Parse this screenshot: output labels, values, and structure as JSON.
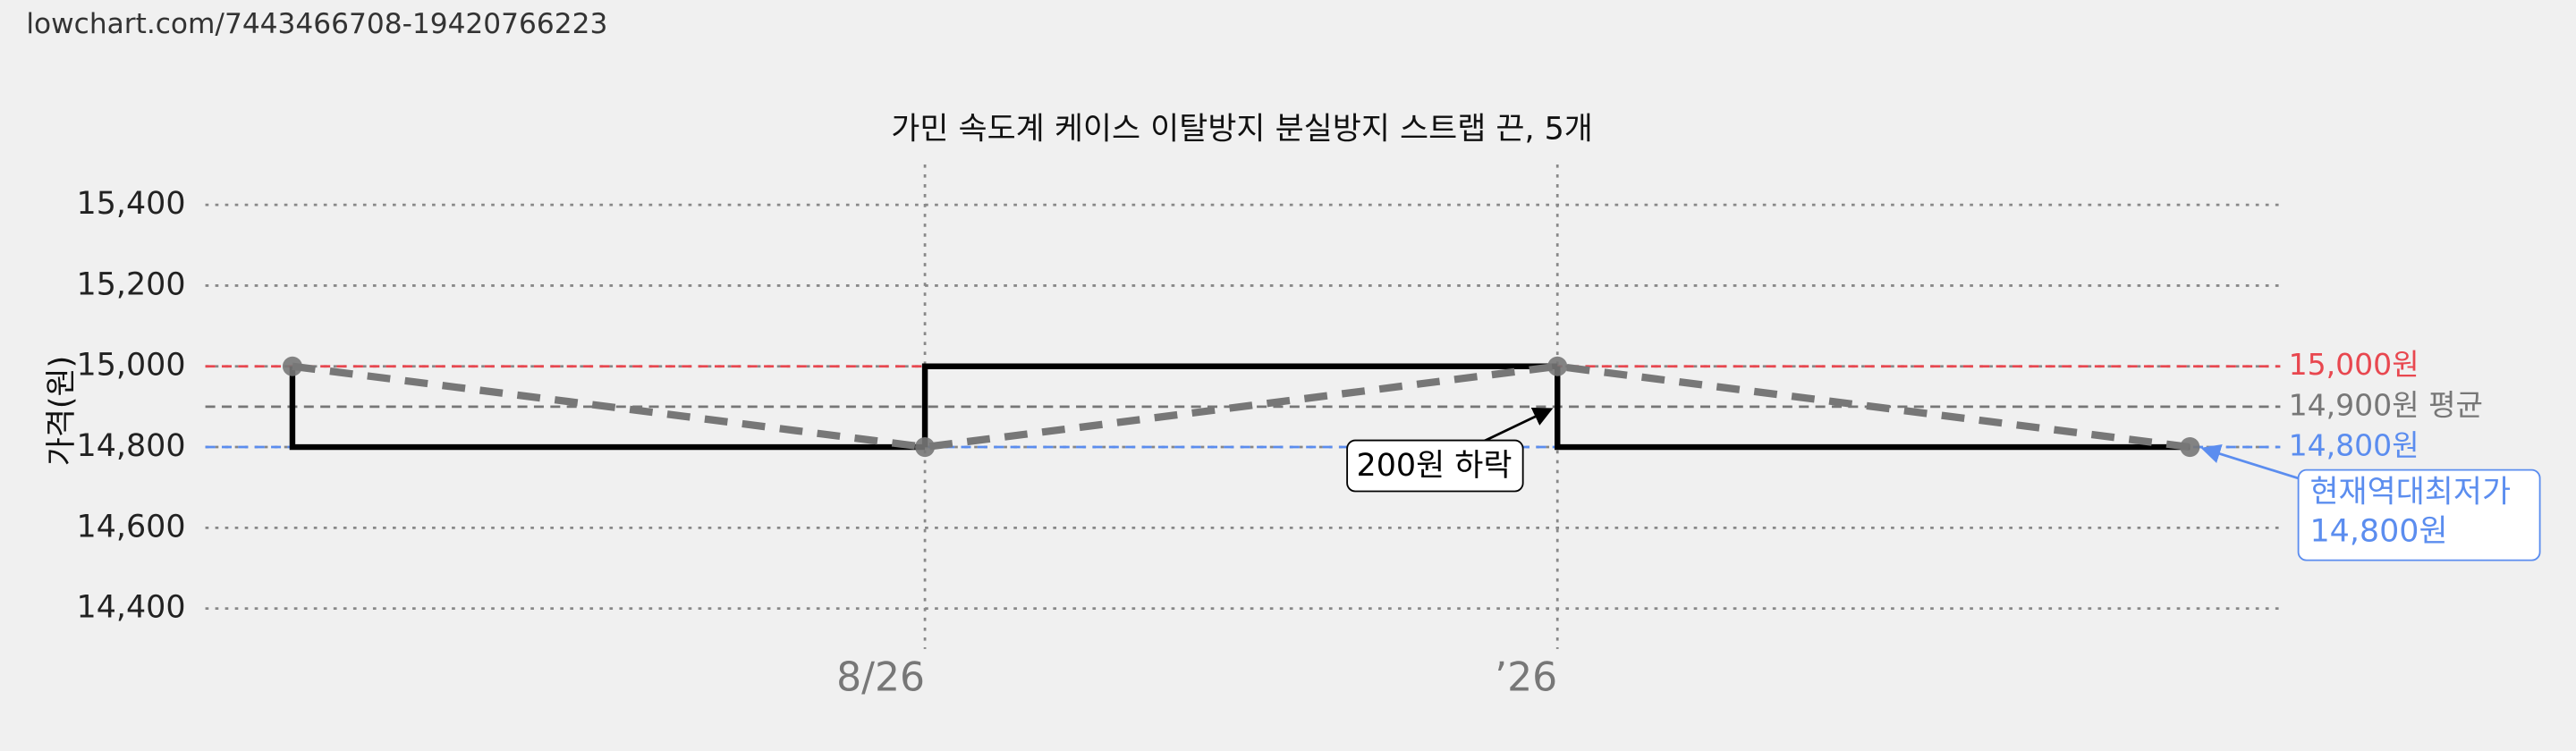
{
  "url": "lowchart.com/7443466708-19420766223",
  "chart_data": {
    "type": "line",
    "title": "가민 속도계 케이스 이탈방지 분실방지 스트랩 끈, 5개",
    "y_label": "가격(원)",
    "categories": [
      null,
      "8/26",
      "’26",
      null
    ],
    "series": [
      {
        "color": "#777777",
        "values": [
          15000,
          14800,
          15000,
          14800
        ]
      }
    ],
    "step_color": "#000000",
    "ylim": [
      14300,
      15500
    ],
    "yticks": [
      {
        "value": 14400,
        "label": "14,400"
      },
      {
        "value": 14600,
        "label": "14,600"
      },
      {
        "value": 14800,
        "label": "14,800"
      },
      {
        "value": 15000,
        "label": "15,000"
      },
      {
        "value": 15200,
        "label": "15,200"
      },
      {
        "value": 15400,
        "label": "15,400"
      }
    ],
    "grid": true,
    "reference_lines": [
      {
        "value": 15000,
        "label": "15,000원",
        "color": "#e8474f"
      },
      {
        "value": 14900,
        "label": "14,900원 평균",
        "color": "#777777"
      },
      {
        "value": 14800,
        "label": "14,800원",
        "color": "#5b8def"
      }
    ],
    "annotations": [
      {
        "text": "200원 하락"
      },
      {
        "lines": [
          "현재역대최저가",
          "14,800원"
        ]
      }
    ]
  }
}
